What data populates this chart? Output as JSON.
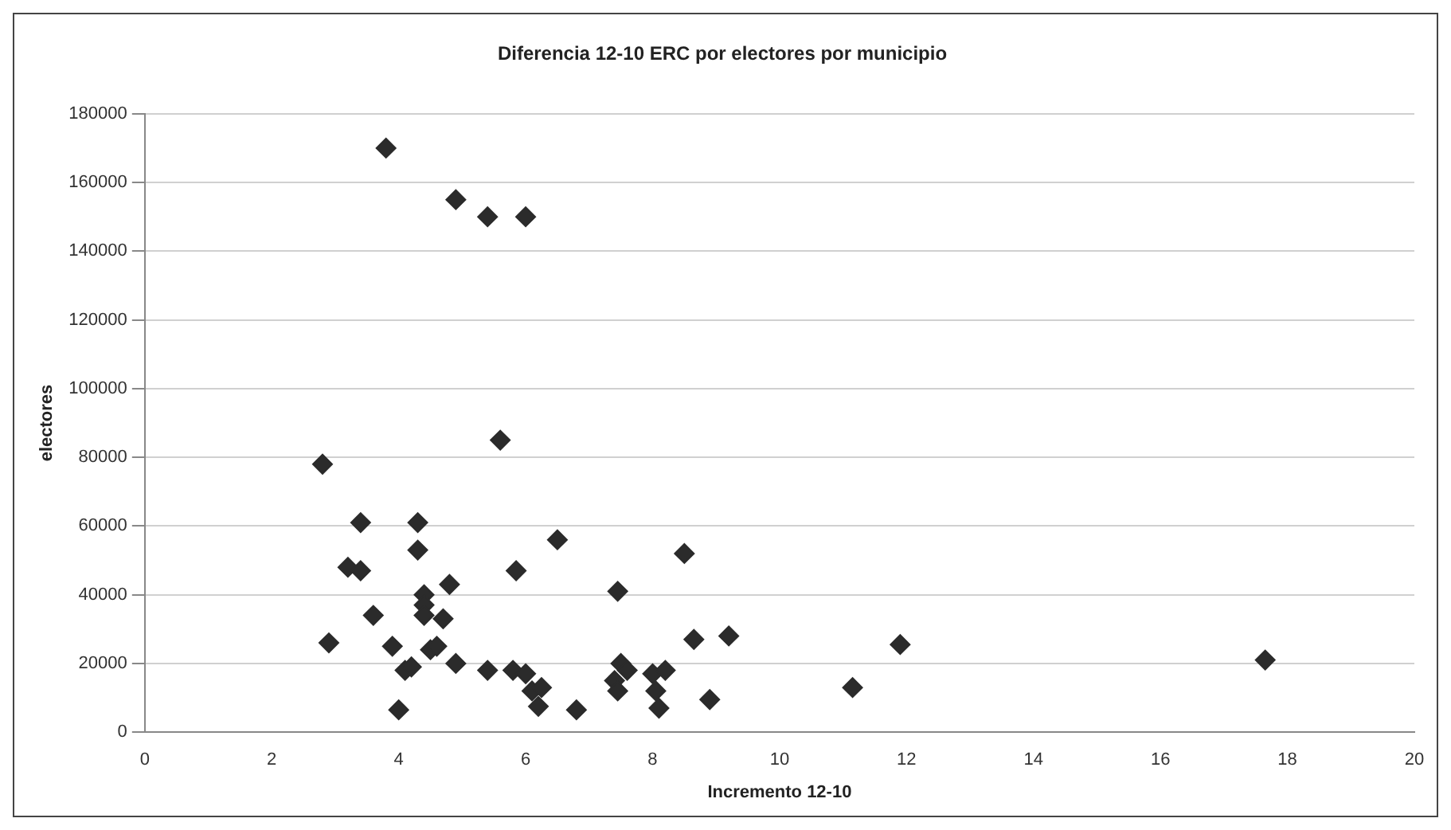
{
  "chart_data": {
    "type": "scatter",
    "title": "Diferencia 12-10 ERC por electores por municipio",
    "xlabel": "Incremento 12-10",
    "ylabel": "electores",
    "series": [
      {
        "color": "#2b2b2b",
        "x": [
          3.8,
          4.9,
          5.4,
          6.0,
          2.8,
          5.6,
          2.9,
          3.2,
          3.4,
          3.4,
          3.6,
          3.9,
          4.0,
          4.1,
          4.3,
          4.3,
          4.2,
          4.4,
          4.4,
          4.4,
          4.5,
          4.6,
          4.7,
          4.8,
          4.9,
          5.4,
          5.8,
          5.85,
          6.0,
          6.1,
          6.2,
          6.25,
          6.2,
          6.5,
          6.8,
          7.4,
          7.45,
          7.45,
          7.5,
          7.6,
          8.0,
          8.05,
          8.1,
          8.2,
          8.5,
          8.65,
          8.9,
          9.2,
          11.15,
          11.9,
          17.65
        ],
        "values": [
          170000,
          155000,
          150000,
          150000,
          78000,
          85000,
          26000,
          48000,
          61000,
          47000,
          34000,
          25000,
          6500,
          18000,
          61000,
          53000,
          19000,
          40000,
          37000,
          34000,
          24000,
          25000,
          33000,
          43000,
          20000,
          18000,
          18000,
          47000,
          17000,
          12000,
          null,
          13000,
          7500,
          56000,
          6500,
          15000,
          12000,
          41000,
          20000,
          18000,
          17000,
          12000,
          7000,
          18000,
          52000,
          27000,
          9500,
          28000,
          13000,
          25500,
          21000
        ]
      }
    ],
    "xlim": [
      0,
      20
    ],
    "xticks": [
      0,
      2,
      4,
      6,
      8,
      10,
      12,
      14,
      16,
      18,
      20
    ],
    "ylim": [
      0,
      180000
    ],
    "yticks": [
      0,
      20000,
      40000,
      60000,
      80000,
      100000,
      120000,
      140000,
      160000,
      180000
    ],
    "grid": "y",
    "marker": "diamond",
    "legend": false
  }
}
